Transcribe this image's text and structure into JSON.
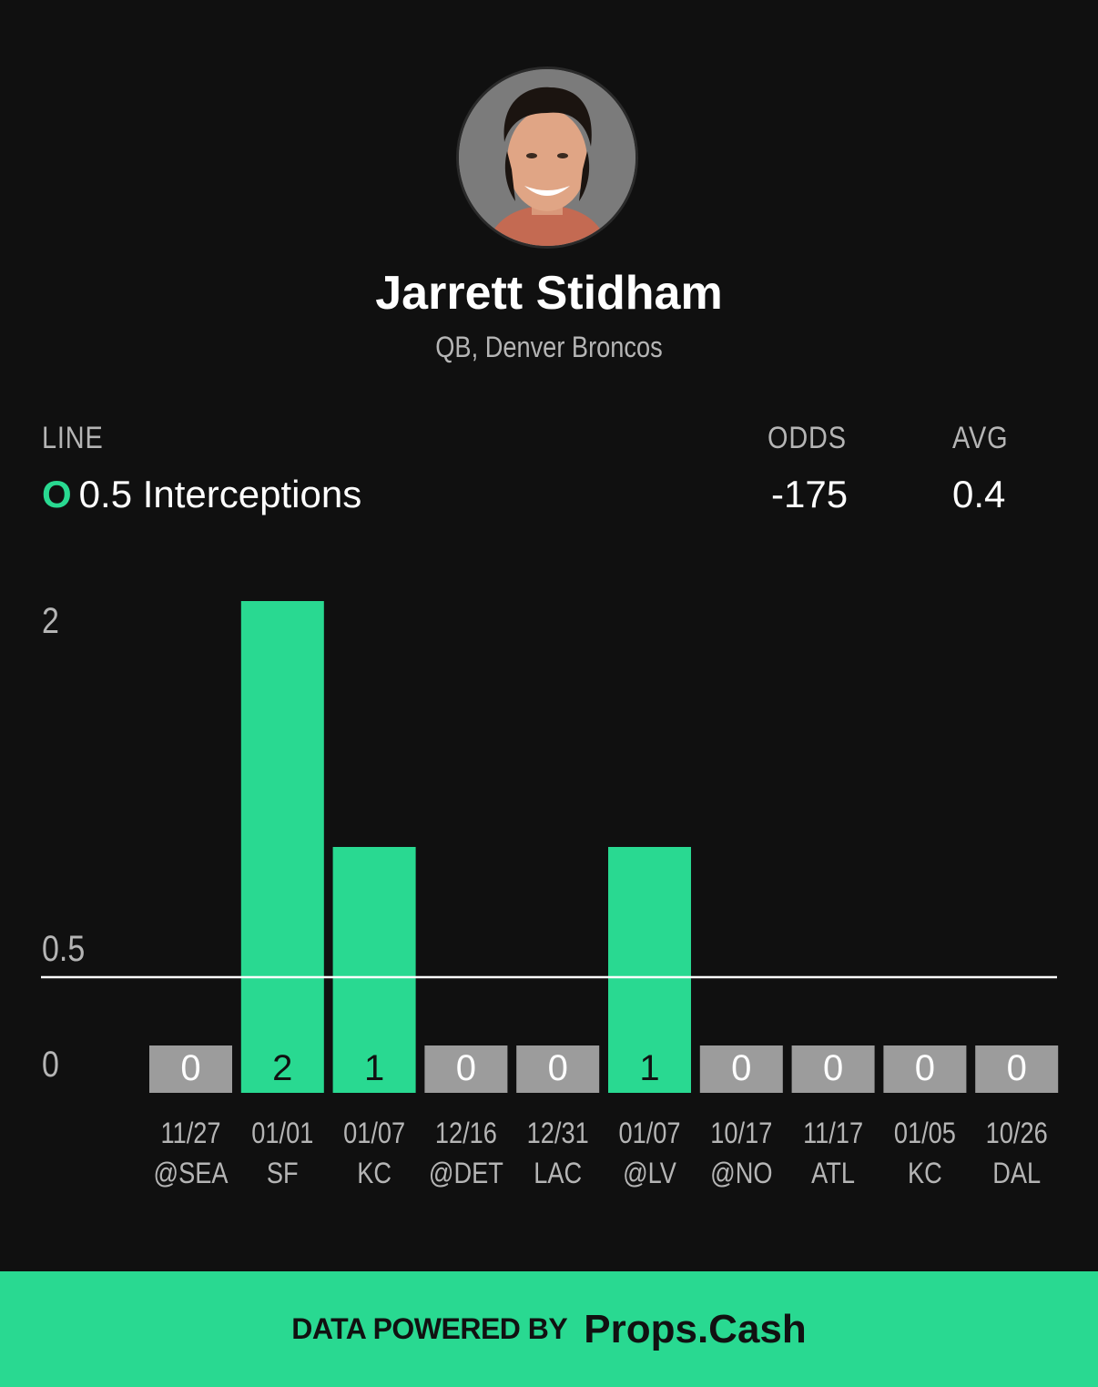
{
  "player": {
    "name": "Jarrett Stidham",
    "subtitle": "QB, Denver Broncos"
  },
  "stats": {
    "line_label": "LINE",
    "line_indicator": "O",
    "line_value": "0.5 Interceptions",
    "odds_label": "ODDS",
    "odds_value": "-175",
    "avg_label": "AVG",
    "avg_value": "0.4"
  },
  "colors": {
    "accent": "#29d991",
    "zero_bar": "#9c9c9c",
    "background": "#101010"
  },
  "chart_data": {
    "type": "bar",
    "categories": [
      "11/27",
      "01/01",
      "01/07",
      "12/16",
      "12/31",
      "01/07",
      "10/17",
      "11/17",
      "01/05",
      "10/26"
    ],
    "opponents": [
      "@SEA",
      "SF",
      "KC",
      "@DET",
      "LAC",
      "@LV",
      "@NO",
      "ATL",
      "KC",
      "DAL"
    ],
    "values": [
      0,
      2,
      1,
      0,
      0,
      1,
      0,
      0,
      0,
      0
    ],
    "y_ticks": [
      "2",
      "0.5",
      "0"
    ],
    "line": 0.5,
    "ylim": [
      0,
      2
    ]
  },
  "footer": {
    "powered_by": "DATA POWERED BY",
    "brand": "Props.Cash"
  }
}
